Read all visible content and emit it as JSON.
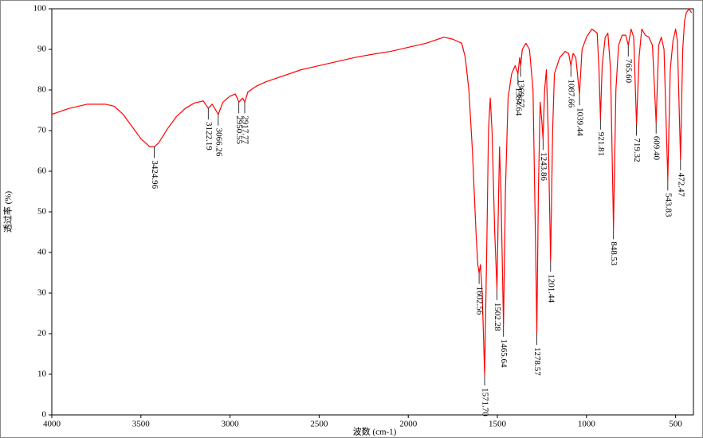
{
  "chart_data": {
    "type": "line",
    "xlabel": "波数 (cm-1)",
    "ylabel": "透过率 (%)",
    "color": "#ff0000",
    "xlim": [
      4000,
      400
    ],
    "ylim": [
      0,
      100
    ],
    "xticks": [
      4000,
      3500,
      3000,
      2500,
      2000,
      1500,
      1000,
      500
    ],
    "yticks": [
      0,
      10,
      20,
      30,
      40,
      50,
      60,
      70,
      80,
      90,
      100
    ],
    "x": [
      4000,
      3900,
      3800,
      3700,
      3650,
      3600,
      3550,
      3500,
      3450,
      3425,
      3400,
      3350,
      3300,
      3250,
      3200,
      3150,
      3122,
      3100,
      3066,
      3040,
      3000,
      2970,
      2950,
      2930,
      2917,
      2900,
      2850,
      2800,
      2700,
      2600,
      2500,
      2400,
      2300,
      2200,
      2100,
      2000,
      1900,
      1800,
      1750,
      1700,
      1680,
      1660,
      1640,
      1620,
      1610,
      1602.56,
      1595,
      1585,
      1571.7,
      1560,
      1550,
      1540,
      1530,
      1515,
      1502.28,
      1495,
      1488,
      1480,
      1465.64,
      1455,
      1440,
      1420,
      1400,
      1384.64,
      1375,
      1369.57,
      1360,
      1340,
      1320,
      1300,
      1285,
      1278.57,
      1270,
      1260,
      1250,
      1243.86,
      1235,
      1225,
      1215,
      1201.44,
      1190,
      1180,
      1150,
      1120,
      1100,
      1087.66,
      1075,
      1060,
      1039.44,
      1025,
      1000,
      970,
      940,
      930,
      921.81,
      912,
      895,
      880,
      865,
      848.53,
      835,
      820,
      800,
      780,
      765.6,
      750,
      735,
      719.32,
      705,
      690,
      670,
      650,
      630,
      609.4,
      595,
      580,
      565,
      543.83,
      530,
      515,
      500,
      490,
      472.47,
      460,
      450,
      440,
      425,
      410
    ],
    "values": [
      74,
      75.5,
      76.5,
      76.5,
      76,
      74,
      71,
      68,
      66,
      66,
      67,
      70.5,
      73.5,
      75.5,
      76.8,
      77.3,
      75.5,
      76.5,
      74,
      77,
      78.5,
      79,
      77,
      78,
      77,
      79.5,
      81,
      82,
      83.5,
      85,
      86,
      87,
      88,
      88.8,
      89.5,
      90.5,
      91.5,
      93,
      92.5,
      91.5,
      88,
      80,
      65,
      45,
      37,
      35,
      37,
      30,
      10,
      40,
      70,
      78,
      70,
      45,
      31,
      50,
      66,
      55,
      22,
      55,
      78,
      84,
      86,
      84,
      88,
      86,
      90,
      91.5,
      90,
      80,
      40,
      20,
      55,
      77,
      72,
      68,
      80,
      85,
      70,
      38,
      70,
      84,
      88,
      89.5,
      89,
      86,
      89,
      88,
      79,
      90,
      93,
      95,
      94,
      85,
      73,
      86,
      93,
      94,
      85,
      46,
      80,
      91,
      93.5,
      93.5,
      91,
      95,
      93,
      71.5,
      88,
      95,
      93.5,
      93,
      91,
      72,
      91,
      93,
      90,
      58,
      85,
      92,
      95,
      92,
      63,
      90,
      97,
      99,
      100,
      99
    ],
    "annotations": [
      {
        "label": "3424.96",
        "x": 3424.96,
        "y": 66
      },
      {
        "label": "3122.19",
        "x": 3122.19,
        "y": 75.5
      },
      {
        "label": "3066.26",
        "x": 3066.26,
        "y": 74
      },
      {
        "label": "2950.55",
        "x": 2950.55,
        "y": 77
      },
      {
        "label": "2917.77",
        "x": 2917.77,
        "y": 77
      },
      {
        "label": "1602.56",
        "x": 1602.56,
        "y": 35
      },
      {
        "label": "1571.70",
        "x": 1571.7,
        "y": 10
      },
      {
        "label": "1502.28",
        "x": 1502.28,
        "y": 31
      },
      {
        "label": "1465.64",
        "x": 1465.64,
        "y": 22
      },
      {
        "label": "1384.64",
        "x": 1384.64,
        "y": 84
      },
      {
        "label": "1369.57",
        "x": 1369.57,
        "y": 86
      },
      {
        "label": "1278.57",
        "x": 1278.57,
        "y": 20
      },
      {
        "label": "1243.86",
        "x": 1243.86,
        "y": 68
      },
      {
        "label": "1201.44",
        "x": 1201.44,
        "y": 38
      },
      {
        "label": "1087.66",
        "x": 1087.66,
        "y": 86
      },
      {
        "label": "1039.44",
        "x": 1039.44,
        "y": 79
      },
      {
        "label": "921.81",
        "x": 921.81,
        "y": 73
      },
      {
        "label": "848.53",
        "x": 848.53,
        "y": 46
      },
      {
        "label": "765.60",
        "x": 765.6,
        "y": 91
      },
      {
        "label": "719.32",
        "x": 719.32,
        "y": 71.5
      },
      {
        "label": "609.40",
        "x": 609.4,
        "y": 72
      },
      {
        "label": "543.83",
        "x": 543.83,
        "y": 58
      },
      {
        "label": "472.47",
        "x": 472.47,
        "y": 63
      }
    ]
  }
}
